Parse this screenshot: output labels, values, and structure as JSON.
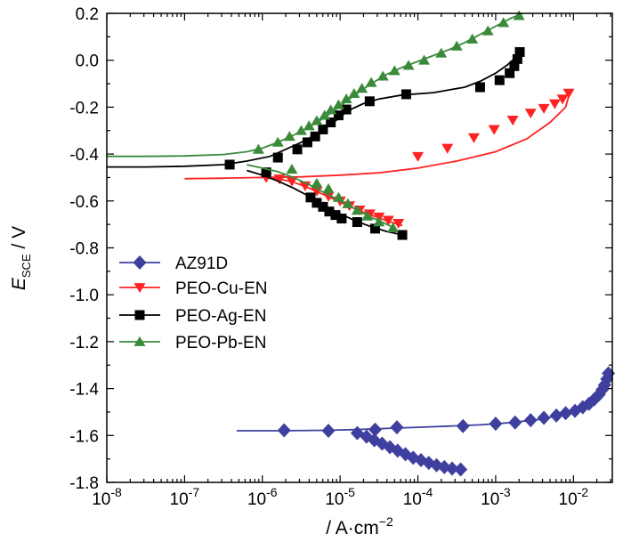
{
  "chart_data": {
    "type": "line",
    "x_scale": "log",
    "xlim_exp": [
      -8,
      -1.5
    ],
    "ylim": [
      -1.8,
      0.2
    ],
    "xlabel": {
      "prefix": "/ ",
      "main": "A·cm",
      "sup": "−2"
    },
    "ylabel": {
      "main": "E",
      "sub": "SCE",
      "suffix": " / V"
    },
    "x_ticks": [
      {
        "exp": -8,
        "base": "10",
        "sup": "-8"
      },
      {
        "exp": -7,
        "base": "10",
        "sup": "-7"
      },
      {
        "exp": -6,
        "base": "10",
        "sup": "-6"
      },
      {
        "exp": -5,
        "base": "10",
        "sup": "-5"
      },
      {
        "exp": -4,
        "base": "10",
        "sup": "-4"
      },
      {
        "exp": -3,
        "base": "10",
        "sup": "-3"
      },
      {
        "exp": -2,
        "base": "10",
        "sup": "-2"
      }
    ],
    "y_ticks": [
      {
        "value": 0.2,
        "label": "0.2"
      },
      {
        "value": 0.0,
        "label": "0.0"
      },
      {
        "value": -0.2,
        "label": "-0.2"
      },
      {
        "value": -0.4,
        "label": "-0.4"
      },
      {
        "value": -0.6,
        "label": "-0.6"
      },
      {
        "value": -0.8,
        "label": "-0.8"
      },
      {
        "value": -1.0,
        "label": "-1.0"
      },
      {
        "value": -1.2,
        "label": "-1.2"
      },
      {
        "value": -1.4,
        "label": "-1.4"
      },
      {
        "value": -1.6,
        "label": "-1.6"
      },
      {
        "value": -1.8,
        "label": "-1.8"
      }
    ],
    "legend_position": "middle-left",
    "series": [
      {
        "name": "AZ91D",
        "color": "#3f3f9f",
        "marker": "diamond",
        "branches": [
          {
            "logx": [
              -6.33,
              -5.8,
              -5.2,
              -4.8,
              -4.4,
              -4.0,
              -3.6,
              -3.2,
              -2.8,
              -2.4,
              -2.2,
              -2.0,
              -1.85,
              -1.75,
              -1.68,
              -1.62,
              -1.58,
              -1.55
            ],
            "y": [
              -1.58,
              -1.58,
              -1.578,
              -1.575,
              -1.57,
              -1.565,
              -1.56,
              -1.555,
              -1.545,
              -1.53,
              -1.515,
              -1.5,
              -1.48,
              -1.46,
              -1.43,
              -1.4,
              -1.37,
              -1.335
            ]
          },
          {
            "logx": [
              -4.8,
              -4.7,
              -4.6,
              -4.5,
              -4.4,
              -4.3,
              -4.2,
              -4.1,
              -4.0,
              -3.9,
              -3.8,
              -3.7,
              -3.6,
              -3.5,
              -3.4
            ],
            "y": [
              -1.575,
              -1.59,
              -1.605,
              -1.62,
              -1.635,
              -1.65,
              -1.665,
              -1.68,
              -1.695,
              -1.71,
              -1.72,
              -1.73,
              -1.737,
              -1.743,
              -1.745
            ]
          }
        ],
        "marker_points": [
          {
            "logx": -5.15,
            "y": -1.58
          },
          {
            "logx": -4.55,
            "y": -1.575
          },
          {
            "logx": -4.27,
            "y": -1.565
          },
          {
            "logx": -3.42,
            "y": -1.56
          },
          {
            "logx": -3.0,
            "y": -1.55
          },
          {
            "logx": -2.75,
            "y": -1.545
          },
          {
            "logx": -2.55,
            "y": -1.535
          },
          {
            "logx": -2.38,
            "y": -1.525
          },
          {
            "logx": -2.22,
            "y": -1.515
          },
          {
            "logx": -2.1,
            "y": -1.505
          },
          {
            "logx": -1.98,
            "y": -1.495
          },
          {
            "logx": -1.88,
            "y": -1.48
          },
          {
            "logx": -1.8,
            "y": -1.465
          },
          {
            "logx": -1.73,
            "y": -1.445
          },
          {
            "logx": -1.67,
            "y": -1.425
          },
          {
            "logx": -1.63,
            "y": -1.405
          },
          {
            "logx": -1.6,
            "y": -1.385
          },
          {
            "logx": -1.57,
            "y": -1.36
          },
          {
            "logx": -1.55,
            "y": -1.335
          },
          {
            "logx": -5.72,
            "y": -1.578
          },
          {
            "logx": -4.78,
            "y": -1.59
          },
          {
            "logx": -4.66,
            "y": -1.605
          },
          {
            "logx": -4.56,
            "y": -1.62
          },
          {
            "logx": -4.46,
            "y": -1.635
          },
          {
            "logx": -4.36,
            "y": -1.65
          },
          {
            "logx": -4.26,
            "y": -1.665
          },
          {
            "logx": -4.16,
            "y": -1.68
          },
          {
            "logx": -4.06,
            "y": -1.695
          },
          {
            "logx": -3.96,
            "y": -1.705
          },
          {
            "logx": -3.86,
            "y": -1.717
          },
          {
            "logx": -3.76,
            "y": -1.727
          },
          {
            "logx": -3.66,
            "y": -1.735
          },
          {
            "logx": -3.56,
            "y": -1.741
          },
          {
            "logx": -3.45,
            "y": -1.745
          }
        ]
      },
      {
        "name": "PEO-Cu-EN",
        "color": "#ff2222",
        "marker": "triangle-down",
        "branches": [
          {
            "logx": [
              -7.0,
              -6.5,
              -6.0,
              -5.5,
              -5.0,
              -4.5,
              -4.0,
              -3.5,
              -3.0,
              -2.6,
              -2.3,
              -2.1,
              -2.05
            ],
            "y": [
              -0.505,
              -0.503,
              -0.5,
              -0.497,
              -0.49,
              -0.48,
              -0.46,
              -0.43,
              -0.39,
              -0.335,
              -0.265,
              -0.2,
              -0.14
            ]
          },
          {
            "logx": [
              -6.0,
              -5.8,
              -5.6,
              -5.4,
              -5.2,
              -5.0,
              -4.8,
              -4.6,
              -4.4,
              -4.2
            ],
            "y": [
              -0.5,
              -0.505,
              -0.52,
              -0.545,
              -0.575,
              -0.605,
              -0.635,
              -0.66,
              -0.685,
              -0.705
            ]
          }
        ],
        "marker_points": [
          {
            "logx": -5.95,
            "y": -0.5
          },
          {
            "logx": -5.78,
            "y": -0.506
          },
          {
            "logx": -5.62,
            "y": -0.515
          },
          {
            "logx": -5.45,
            "y": -0.535
          },
          {
            "logx": -5.3,
            "y": -0.558
          },
          {
            "logx": -5.15,
            "y": -0.58
          },
          {
            "logx": -5.0,
            "y": -0.6
          },
          {
            "logx": -4.88,
            "y": -0.62
          },
          {
            "logx": -4.75,
            "y": -0.638
          },
          {
            "logx": -4.62,
            "y": -0.655
          },
          {
            "logx": -4.5,
            "y": -0.668
          },
          {
            "logx": -4.38,
            "y": -0.682
          },
          {
            "logx": -4.25,
            "y": -0.695
          },
          {
            "logx": -4.0,
            "y": -0.41
          },
          {
            "logx": -3.62,
            "y": -0.375
          },
          {
            "logx": -3.28,
            "y": -0.33
          },
          {
            "logx": -3.02,
            "y": -0.295
          },
          {
            "logx": -2.78,
            "y": -0.255
          },
          {
            "logx": -2.55,
            "y": -0.225
          },
          {
            "logx": -2.38,
            "y": -0.205
          },
          {
            "logx": -2.24,
            "y": -0.185
          },
          {
            "logx": -2.14,
            "y": -0.165
          },
          {
            "logx": -2.06,
            "y": -0.14
          }
        ]
      },
      {
        "name": "PEO-Ag-EN",
        "color": "#000000",
        "marker": "square",
        "branches": [
          {
            "logx": [
              -8.0,
              -7.5,
              -7.0,
              -6.5,
              -6.2,
              -5.9,
              -5.7,
              -5.5,
              -5.3,
              -5.1,
              -4.9,
              -4.7,
              -4.5,
              -4.2,
              -3.8,
              -3.4,
              -3.2,
              -3.0,
              -2.85,
              -2.75,
              -2.7
            ],
            "y": [
              -0.455,
              -0.455,
              -0.452,
              -0.445,
              -0.43,
              -0.41,
              -0.38,
              -0.35,
              -0.315,
              -0.27,
              -0.215,
              -0.185,
              -0.165,
              -0.148,
              -0.138,
              -0.115,
              -0.09,
              -0.055,
              -0.02,
              0.01,
              0.035
            ]
          },
          {
            "logx": [
              -6.2,
              -6.0,
              -5.8,
              -5.6,
              -5.4,
              -5.2,
              -5.0,
              -4.8,
              -4.6,
              -4.4,
              -4.2
            ],
            "y": [
              -0.47,
              -0.49,
              -0.515,
              -0.545,
              -0.58,
              -0.62,
              -0.655,
              -0.685,
              -0.71,
              -0.73,
              -0.745
            ]
          }
        ],
        "marker_points": [
          {
            "logx": -6.42,
            "y": -0.445
          },
          {
            "logx": -5.8,
            "y": -0.415
          },
          {
            "logx": -5.55,
            "y": -0.38
          },
          {
            "logx": -5.42,
            "y": -0.35
          },
          {
            "logx": -5.32,
            "y": -0.325
          },
          {
            "logx": -5.22,
            "y": -0.295
          },
          {
            "logx": -5.12,
            "y": -0.265
          },
          {
            "logx": -5.02,
            "y": -0.235
          },
          {
            "logx": -4.92,
            "y": -0.21
          },
          {
            "logx": -4.62,
            "y": -0.175
          },
          {
            "logx": -4.15,
            "y": -0.145
          },
          {
            "logx": -3.2,
            "y": -0.115
          },
          {
            "logx": -2.95,
            "y": -0.085
          },
          {
            "logx": -2.82,
            "y": -0.055
          },
          {
            "logx": -2.76,
            "y": -0.025
          },
          {
            "logx": -2.72,
            "y": 0.005
          },
          {
            "logx": -2.69,
            "y": 0.035
          },
          {
            "logx": -5.95,
            "y": -0.478
          },
          {
            "logx": -5.38,
            "y": -0.585
          },
          {
            "logx": -5.3,
            "y": -0.608
          },
          {
            "logx": -5.22,
            "y": -0.625
          },
          {
            "logx": -5.14,
            "y": -0.645
          },
          {
            "logx": -5.06,
            "y": -0.66
          },
          {
            "logx": -4.98,
            "y": -0.675
          },
          {
            "logx": -4.78,
            "y": -0.69
          },
          {
            "logx": -4.55,
            "y": -0.718
          },
          {
            "logx": -4.2,
            "y": -0.745
          }
        ]
      },
      {
        "name": "PEO-Pb-EN",
        "color": "#3a8a3a",
        "marker": "triangle-up",
        "branches": [
          {
            "logx": [
              -8.0,
              -7.5,
              -7.0,
              -6.5,
              -6.2,
              -6.0,
              -5.8,
              -5.6,
              -5.4,
              -5.2,
              -5.0,
              -4.8,
              -4.6,
              -4.4,
              -4.2,
              -4.0,
              -3.8,
              -3.6,
              -3.4,
              -3.2,
              -3.0,
              -2.8,
              -2.65
            ],
            "y": [
              -0.41,
              -0.41,
              -0.408,
              -0.402,
              -0.39,
              -0.375,
              -0.35,
              -0.32,
              -0.285,
              -0.245,
              -0.195,
              -0.145,
              -0.1,
              -0.06,
              -0.03,
              -0.005,
              0.02,
              0.045,
              0.075,
              0.11,
              0.145,
              0.18,
              0.2
            ]
          },
          {
            "logx": [
              -6.2,
              -6.0,
              -5.8,
              -5.6,
              -5.4,
              -5.2,
              -5.0,
              -4.8,
              -4.6,
              -4.4,
              -4.3
            ],
            "y": [
              -0.445,
              -0.46,
              -0.475,
              -0.5,
              -0.53,
              -0.565,
              -0.6,
              -0.635,
              -0.67,
              -0.7,
              -0.715
            ]
          }
        ],
        "marker_points": [
          {
            "logx": -6.05,
            "y": -0.38
          },
          {
            "logx": -5.8,
            "y": -0.35
          },
          {
            "logx": -5.65,
            "y": -0.325
          },
          {
            "logx": -5.5,
            "y": -0.3
          },
          {
            "logx": -5.4,
            "y": -0.28
          },
          {
            "logx": -5.3,
            "y": -0.258
          },
          {
            "logx": -5.2,
            "y": -0.235
          },
          {
            "logx": -5.12,
            "y": -0.212
          },
          {
            "logx": -5.02,
            "y": -0.19
          },
          {
            "logx": -4.92,
            "y": -0.165
          },
          {
            "logx": -4.82,
            "y": -0.142
          },
          {
            "logx": -4.72,
            "y": -0.12
          },
          {
            "logx": -4.6,
            "y": -0.095
          },
          {
            "logx": -4.45,
            "y": -0.068
          },
          {
            "logx": -4.3,
            "y": -0.045
          },
          {
            "logx": -4.12,
            "y": -0.022
          },
          {
            "logx": -3.92,
            "y": 0.0
          },
          {
            "logx": -3.7,
            "y": 0.03
          },
          {
            "logx": -3.5,
            "y": 0.06
          },
          {
            "logx": -3.3,
            "y": 0.09
          },
          {
            "logx": -3.1,
            "y": 0.125
          },
          {
            "logx": -2.9,
            "y": 0.16
          },
          {
            "logx": -2.7,
            "y": 0.19
          },
          {
            "logx": -5.62,
            "y": -0.465
          },
          {
            "logx": -5.3,
            "y": -0.525
          },
          {
            "logx": -5.15,
            "y": -0.548
          },
          {
            "logx": -5.02,
            "y": -0.585
          },
          {
            "logx": -4.9,
            "y": -0.612
          },
          {
            "logx": -4.78,
            "y": -0.64
          },
          {
            "logx": -4.65,
            "y": -0.665
          },
          {
            "logx": -4.5,
            "y": -0.69
          },
          {
            "logx": -4.32,
            "y": -0.715
          }
        ]
      }
    ]
  }
}
